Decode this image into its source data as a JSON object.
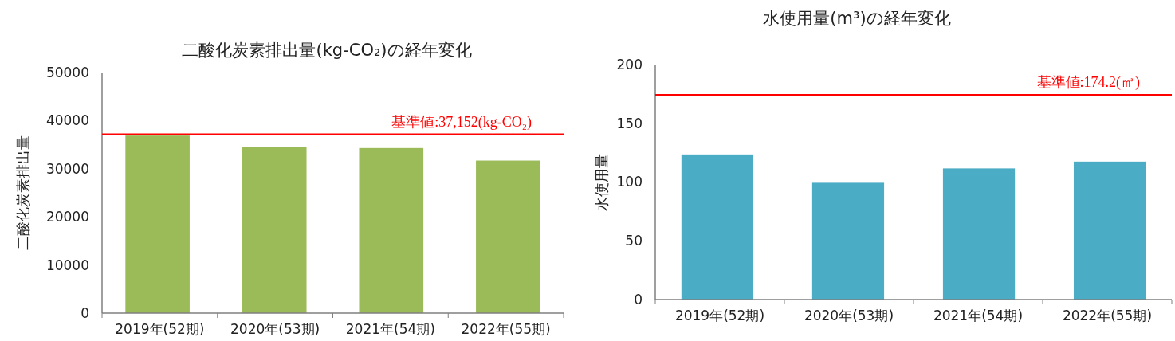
{
  "chart_data": [
    {
      "type": "bar",
      "title": "二酸化炭素排出量(kg-CO₂)の経年変化",
      "ylabel": "二酸化炭素排出量",
      "categories": [
        "2019年(52期)",
        "2020年(53期)",
        "2021年(54期)",
        "2022年(55期)"
      ],
      "values": [
        36900,
        34500,
        34300,
        31700
      ],
      "color": "#9bbb59",
      "ylim": [
        0,
        50000
      ],
      "yticks": [
        0,
        10000,
        20000,
        30000,
        40000,
        50000
      ],
      "grid": false,
      "ref_lines": [
        {
          "axis": "y",
          "value": 37152,
          "label": "基準値:37,152(kg-CO₂)",
          "color": "#ff0000"
        }
      ]
    },
    {
      "type": "bar",
      "title": "水使用量(m³)の経年変化",
      "ylabel": "水使用量",
      "categories": [
        "2019年(52期)",
        "2020年(53期)",
        "2021年(54期)",
        "2022年(55期)"
      ],
      "values": [
        123.5,
        99.4,
        111.6,
        117.4
      ],
      "color": "#4bacc6",
      "ylim": [
        0,
        200
      ],
      "yticks": [
        0,
        50,
        100,
        150,
        200
      ],
      "grid": false,
      "ref_lines": [
        {
          "axis": "y",
          "value": 174.2,
          "label": "基準値:174.2(㎥)",
          "color": "#ff0000"
        }
      ]
    }
  ]
}
